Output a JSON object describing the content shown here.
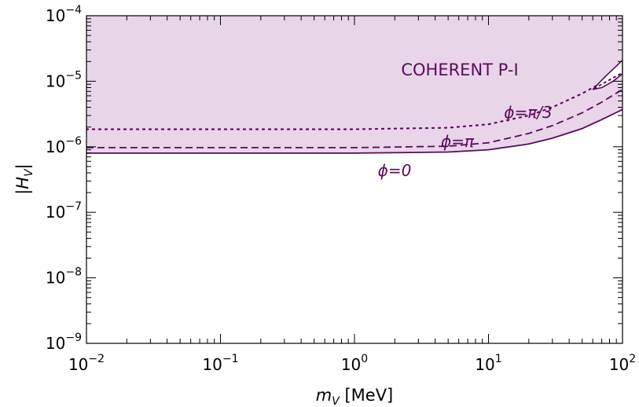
{
  "chart_data": {
    "type": "line",
    "xscale": "log",
    "yscale": "log",
    "xlim": [
      0.01,
      100
    ],
    "ylim": [
      1e-09,
      0.0001
    ],
    "xlabel": {
      "var": "m",
      "sub": "V",
      "unit": " [MeV]"
    },
    "ylabel": {
      "var": "H",
      "sub": "V"
    },
    "x_ticks": [
      {
        "base": "10",
        "exp": "−2",
        "value": 0.01
      },
      {
        "base": "10",
        "exp": "−1",
        "value": 0.1
      },
      {
        "base": "10",
        "exp": "0",
        "value": 1
      },
      {
        "base": "10",
        "exp": "1",
        "value": 10
      },
      {
        "base": "10",
        "exp": "2",
        "value": 100
      }
    ],
    "y_ticks": [
      {
        "base": "10",
        "exp": "−9",
        "value": 1e-09
      },
      {
        "base": "10",
        "exp": "−8",
        "value": 1e-08
      },
      {
        "base": "10",
        "exp": "−7",
        "value": 1e-07
      },
      {
        "base": "10",
        "exp": "−6",
        "value": 1e-06
      },
      {
        "base": "10",
        "exp": "−5",
        "value": 1e-05
      },
      {
        "base": "10",
        "exp": "−4",
        "value": 0.0001
      }
    ],
    "region_label": "COHERENT P-I",
    "series": [
      {
        "label": "ϕ=0",
        "dash": "solid",
        "points": [
          [
            0.01,
            8e-07
          ],
          [
            1,
            8e-07
          ],
          [
            5,
            8.3e-07
          ],
          [
            10,
            9e-07
          ],
          [
            20,
            1.1e-06
          ],
          [
            30,
            1.35e-06
          ],
          [
            50,
            1.9e-06
          ],
          [
            70,
            2.6e-06
          ],
          [
            100,
            3.7e-06
          ]
        ]
      },
      {
        "label": "ϕ=π",
        "dash": "dashed",
        "points": [
          [
            0.01,
            9.7e-07
          ],
          [
            1,
            9.7e-07
          ],
          [
            5,
            1.02e-06
          ],
          [
            10,
            1.15e-06
          ],
          [
            20,
            1.6e-06
          ],
          [
            30,
            2.1e-06
          ],
          [
            50,
            3.3e-06
          ],
          [
            70,
            4.8e-06
          ],
          [
            100,
            7.5e-06
          ]
        ]
      },
      {
        "label": "ϕ=π/3",
        "dash": "dotted",
        "points": [
          [
            0.01,
            1.85e-06
          ],
          [
            1,
            1.85e-06
          ],
          [
            5,
            1.95e-06
          ],
          [
            10,
            2.2e-06
          ],
          [
            20,
            3e-06
          ],
          [
            30,
            4e-06
          ],
          [
            50,
            6.5e-06
          ],
          [
            70,
            9.5e-06
          ],
          [
            100,
            1.45e-05
          ]
        ]
      }
    ],
    "island": {
      "outline": [
        [
          60,
          7.5e-06
        ],
        [
          75,
          1.2e-05
        ],
        [
          90,
          1.7e-05
        ],
        [
          100,
          2.1e-05
        ],
        [
          100,
          1.3e-05
        ],
        [
          85,
          1e-05
        ],
        [
          70,
          8e-06
        ],
        [
          60,
          7.5e-06
        ]
      ],
      "dotted": [
        [
          62,
          7.8e-06
        ],
        [
          80,
          1.05e-05
        ],
        [
          100,
          1.35e-05
        ]
      ]
    },
    "colors": {
      "curve": "#5b0a5b",
      "region_fill": "#e8d5e8",
      "region_text": "#5b0a5b",
      "axis": "#000000"
    },
    "grid": false,
    "legend": "none"
  }
}
